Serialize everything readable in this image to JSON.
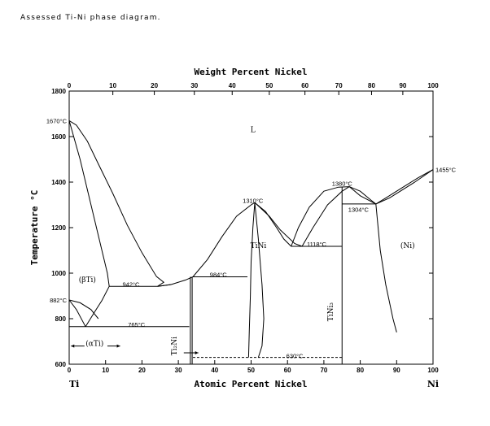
{
  "caption": "Assessed Ti-Ni phase diagram.",
  "chart_data": {
    "type": "line",
    "title": "",
    "top_axis_label": "Weight Percent Nickel",
    "xlabel": "Atomic Percent Nickel",
    "ylabel": "Temperature °C",
    "xlim": [
      0,
      100
    ],
    "ylim": [
      600,
      1800
    ],
    "x_ticks": [
      0,
      10,
      20,
      30,
      40,
      50,
      60,
      70,
      80,
      90,
      100
    ],
    "y_ticks": [
      600,
      800,
      1000,
      1200,
      1400,
      1600,
      1800
    ],
    "top_ticks": [
      {
        "label": "0",
        "at": 0
      },
      {
        "label": "10",
        "at": 12
      },
      {
        "label": "20",
        "at": 23.4
      },
      {
        "label": "30",
        "at": 34.4
      },
      {
        "label": "40",
        "at": 44.8
      },
      {
        "label": "50",
        "at": 55.0
      },
      {
        "label": "60",
        "at": 64.8
      },
      {
        "label": "70",
        "at": 74.1
      },
      {
        "label": "80",
        "at": 83.1
      },
      {
        "label": "90",
        "at": 91.7
      },
      {
        "label": "100",
        "at": 100
      }
    ],
    "end_labels": {
      "left": "Ti",
      "right": "Ni"
    },
    "series": [
      {
        "points": [
          [
            0,
            1670
          ],
          [
            2,
            1650
          ],
          [
            5,
            1580
          ],
          [
            8,
            1480
          ],
          [
            12,
            1350
          ],
          [
            16,
            1210
          ],
          [
            20,
            1090
          ],
          [
            24,
            985
          ],
          [
            26,
            960
          ],
          [
            24.3,
            942
          ]
        ]
      },
      {
        "points": [
          [
            24.3,
            942
          ],
          [
            28,
            950
          ],
          [
            32,
            970
          ],
          [
            34,
            984
          ]
        ]
      },
      {
        "points": [
          [
            34,
            984
          ],
          [
            38,
            1060
          ],
          [
            42,
            1160
          ],
          [
            46,
            1250
          ],
          [
            50,
            1300
          ],
          [
            51,
            1310
          ]
        ]
      },
      {
        "points": [
          [
            51,
            1310
          ],
          [
            54,
            1270
          ],
          [
            57,
            1200
          ],
          [
            59,
            1150
          ],
          [
            61,
            1118
          ]
        ]
      },
      {
        "points": [
          [
            61,
            1118
          ],
          [
            63,
            1200
          ],
          [
            66,
            1290
          ],
          [
            70,
            1360
          ],
          [
            74,
            1378
          ],
          [
            77,
            1380
          ],
          [
            80,
            1360
          ],
          [
            83,
            1320
          ],
          [
            84.3,
            1304
          ]
        ]
      },
      {
        "points": [
          [
            84.3,
            1304
          ],
          [
            87,
            1330
          ],
          [
            92,
            1380
          ],
          [
            96,
            1420
          ],
          [
            100,
            1455
          ]
        ]
      },
      {
        "points": [
          [
            0,
            1670
          ],
          [
            3,
            1500
          ],
          [
            6,
            1300
          ],
          [
            9,
            1100
          ],
          [
            10.5,
            1000
          ],
          [
            11,
            942
          ]
        ]
      },
      {
        "points": [
          [
            24.3,
            942
          ],
          [
            28,
            950
          ]
        ]
      },
      {
        "points": [
          [
            51,
            1310
          ],
          [
            55,
            1250
          ],
          [
            58,
            1190
          ],
          [
            62,
            1130
          ],
          [
            64,
            1118
          ]
        ]
      },
      {
        "points": [
          [
            64,
            1118
          ],
          [
            67,
            1200
          ],
          [
            71,
            1300
          ],
          [
            75,
            1360
          ],
          [
            77,
            1380
          ]
        ]
      },
      {
        "points": [
          [
            77,
            1380
          ],
          [
            80,
            1340
          ],
          [
            84.3,
            1304
          ],
          [
            88,
            1330
          ],
          [
            95,
            1400
          ],
          [
            100,
            1455
          ]
        ]
      },
      {
        "points": [
          [
            0,
            882
          ],
          [
            2,
            840
          ],
          [
            4.5,
            765
          ]
        ]
      },
      {
        "points": [
          [
            4.5,
            765
          ],
          [
            7,
            830
          ],
          [
            9,
            880
          ],
          [
            11,
            942
          ]
        ]
      },
      {
        "points": [
          [
            0,
            882
          ],
          [
            3,
            870
          ],
          [
            6,
            840
          ],
          [
            8,
            800
          ]
        ]
      },
      {
        "points": [
          [
            51,
            1310
          ],
          [
            50.5,
            1200
          ],
          [
            50,
            1050
          ],
          [
            49.8,
            900
          ],
          [
            49.5,
            750
          ],
          [
            49.3,
            630
          ]
        ]
      },
      {
        "points": [
          [
            51,
            1310
          ],
          [
            52,
            1150
          ],
          [
            53,
            950
          ],
          [
            53.5,
            800
          ],
          [
            53,
            680
          ],
          [
            52,
            630
          ]
        ]
      },
      {
        "points": [
          [
            84.3,
            1304
          ],
          [
            85.5,
            1100
          ],
          [
            87,
            950
          ],
          [
            89,
            800
          ],
          [
            90,
            740
          ]
        ]
      }
    ],
    "isotherms": [
      {
        "x": [
          11,
          24.3
        ],
        "y": 942,
        "style": "solid"
      },
      {
        "x": [
          34,
          49
        ],
        "y": 984,
        "style": "solid"
      },
      {
        "x": [
          61,
          75
        ],
        "y": 1118,
        "style": "solid"
      },
      {
        "x": [
          75,
          84.3
        ],
        "y": 1304,
        "style": "solid"
      },
      {
        "x": [
          0,
          33
        ],
        "y": 765,
        "style": "solid"
      },
      {
        "x": [
          34,
          75
        ],
        "y": 630,
        "style": "dashed"
      }
    ],
    "compound_lines": [
      {
        "x": 33.3,
        "y": [
          600,
          984
        ]
      },
      {
        "x": 33.8,
        "y": [
          600,
          984
        ]
      },
      {
        "x": 75,
        "y": [
          600,
          1380
        ]
      }
    ],
    "annotations": [
      {
        "text": "1670°C",
        "x": 0,
        "y": 1670,
        "side": "left"
      },
      {
        "text": "882°C",
        "x": 0,
        "y": 882,
        "side": "left"
      },
      {
        "text": "942°C",
        "x": 17,
        "y": 952
      },
      {
        "text": "765°C",
        "x": 18.5,
        "y": 775
      },
      {
        "text": "984°C",
        "x": 41,
        "y": 995
      },
      {
        "text": "1310°C",
        "x": 50.5,
        "y": 1320
      },
      {
        "text": "1118°C",
        "x": 68,
        "y": 1128
      },
      {
        "text": "1380°C",
        "x": 75,
        "y": 1395
      },
      {
        "text": "1304°C",
        "x": 79.5,
        "y": 1280
      },
      {
        "text": "1455°C",
        "x": 100,
        "y": 1455,
        "side": "right"
      },
      {
        "text": "630°C",
        "x": 62,
        "y": 638
      }
    ],
    "phase_labels": [
      {
        "text": "L",
        "x": 50.5,
        "y": 1620,
        "size": "large"
      },
      {
        "text": "(βTi)",
        "x": 5,
        "y": 960
      },
      {
        "text": "(αTi)",
        "x": 7,
        "y": 680
      },
      {
        "text": "TiNi",
        "x": 52,
        "y": 1110
      },
      {
        "text": "(Ni)",
        "x": 93,
        "y": 1110
      },
      {
        "text": "Ti₂Ni",
        "x": 29.5,
        "y": 680,
        "rotate": -90
      },
      {
        "text": "TiNi₃",
        "x": 72.5,
        "y": 830,
        "rotate": -90
      }
    ]
  }
}
